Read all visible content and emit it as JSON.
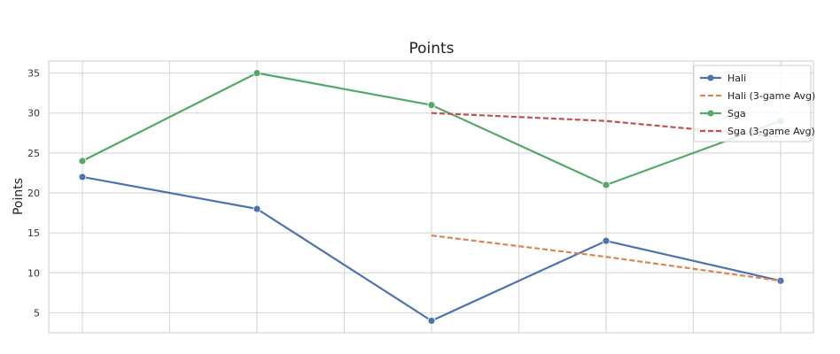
{
  "chart_data": {
    "type": "line",
    "title": "Points",
    "xlabel": "",
    "ylabel": "Points",
    "x": [
      1,
      2,
      3,
      4,
      5
    ],
    "ylim": [
      2.5,
      36.5
    ],
    "yticks": [
      5,
      10,
      15,
      20,
      25,
      30,
      35
    ],
    "xticks_labels_shown": false,
    "grid": true,
    "legend_position": "top-right",
    "series": [
      {
        "name": "Hali",
        "style": "solid",
        "marker": "circle",
        "color": "#4c72b0",
        "points": [
          [
            1,
            22
          ],
          [
            2,
            18
          ],
          [
            3,
            4
          ],
          [
            4,
            14
          ],
          [
            5,
            9
          ]
        ]
      },
      {
        "name": "Hali (3-game Avg)",
        "style": "dashed",
        "marker": "none",
        "color": "#dd8452",
        "points": [
          [
            3,
            14.67
          ],
          [
            4,
            12
          ],
          [
            5,
            9
          ]
        ]
      },
      {
        "name": "Sga",
        "style": "solid",
        "marker": "circle",
        "color": "#55a868",
        "points": [
          [
            1,
            24
          ],
          [
            2,
            35
          ],
          [
            3,
            31
          ],
          [
            4,
            21
          ],
          [
            5,
            29
          ]
        ]
      },
      {
        "name": "Sga (3-game Avg)",
        "style": "dashed",
        "marker": "none",
        "color": "#c44e52",
        "points": [
          [
            3,
            30
          ],
          [
            4,
            29
          ],
          [
            5,
            27
          ]
        ]
      }
    ]
  }
}
